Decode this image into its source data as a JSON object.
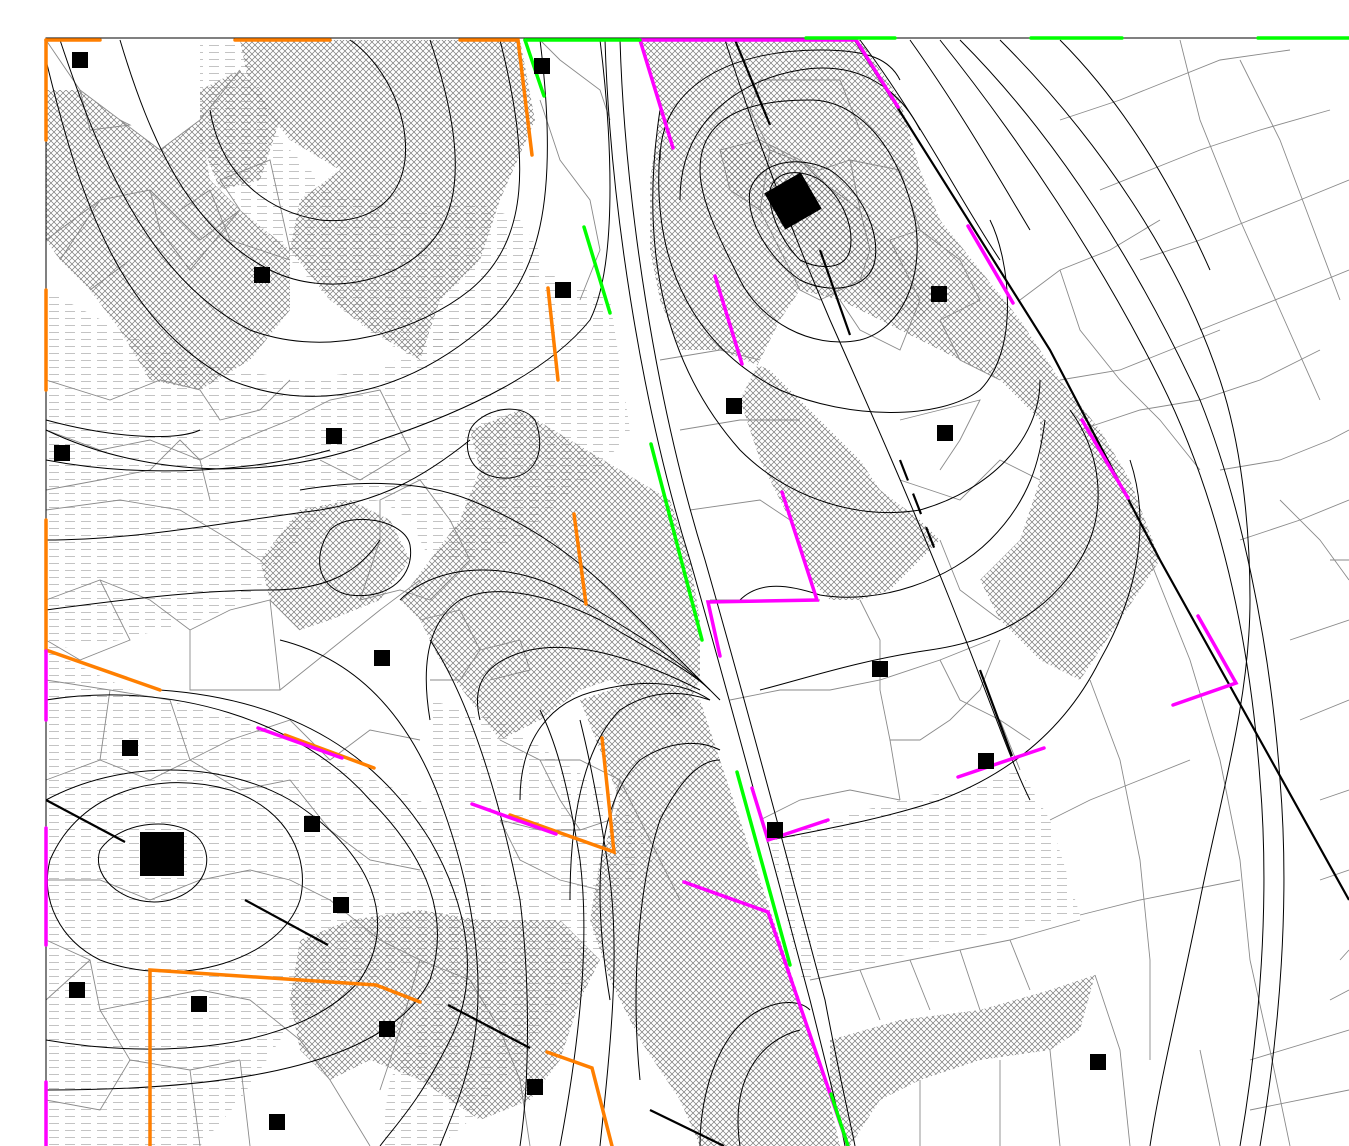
{
  "map": {
    "colors": {
      "background": "#ffffff",
      "contour": "#000000",
      "tin_edge": "#8a8a8a",
      "hatch": "#7a7a7a",
      "dash_fill": "#a9a9a9",
      "orange_line": "#ff7f00",
      "magenta_line": "#ff00ff",
      "green_line": "#00ff00",
      "station_marker": "#000000"
    },
    "layers": [
      "contour-lines",
      "triangulation-edges",
      "crosshatch-zones",
      "dashed-zones",
      "breaklines",
      "station-markers"
    ]
  }
}
